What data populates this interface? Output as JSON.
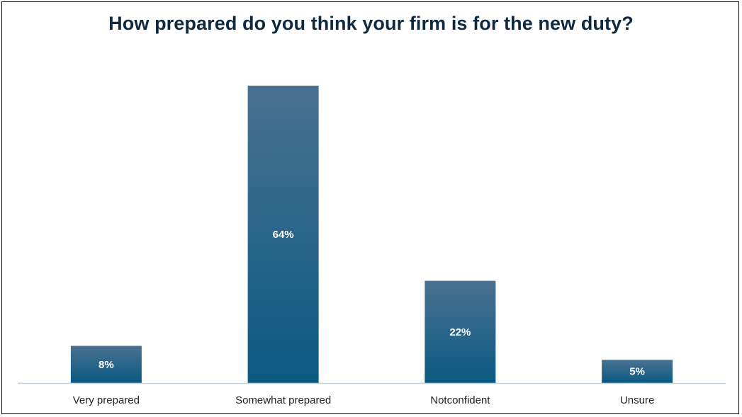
{
  "chart_data": {
    "type": "bar",
    "title": "How prepared do you think your firm is for the new duty?",
    "categories": [
      "Very prepared",
      "Somewhat prepared",
      "Notconfident",
      "Unsure"
    ],
    "values": [
      8,
      64,
      22,
      5
    ],
    "value_labels": [
      "8%",
      "64%",
      "22%",
      "5%"
    ],
    "xlabel": "",
    "ylabel": "",
    "ylim": [
      0,
      64
    ],
    "grid": false,
    "legend": "none",
    "colors": {
      "bar_top": "#4a7191",
      "bar_bottom": "#0a5a82",
      "axis": "#bcd3e6",
      "title": "#0f2940"
    }
  }
}
